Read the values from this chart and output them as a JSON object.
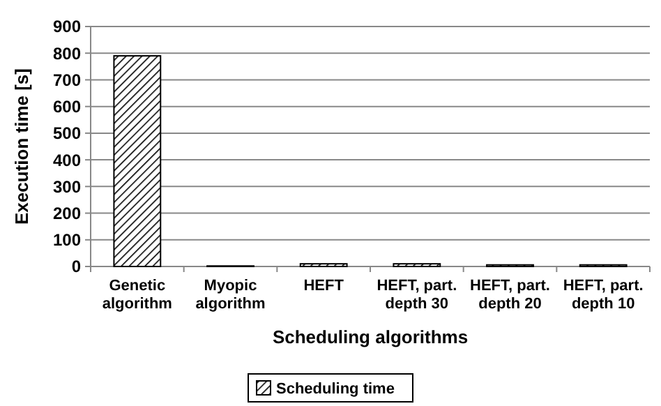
{
  "chart_data": {
    "type": "bar",
    "xlabel": "Scheduling algorithms",
    "ylabel": "Execution time [s]",
    "categories": [
      "Genetic algorithm",
      "Myopic algorithm",
      "HEFT",
      "HEFT, part. depth 30",
      "HEFT, part. depth 20",
      "HEFT, part. depth 10"
    ],
    "series": [
      {
        "name": "Scheduling time",
        "color": "#000000",
        "values": [
          790,
          2,
          10,
          10,
          6,
          6
        ]
      }
    ],
    "ylim": [
      0,
      900
    ],
    "yticks": [
      0,
      100,
      200,
      300,
      400,
      500,
      600,
      700,
      800,
      900
    ],
    "grid": "y",
    "legend": "bottom"
  }
}
